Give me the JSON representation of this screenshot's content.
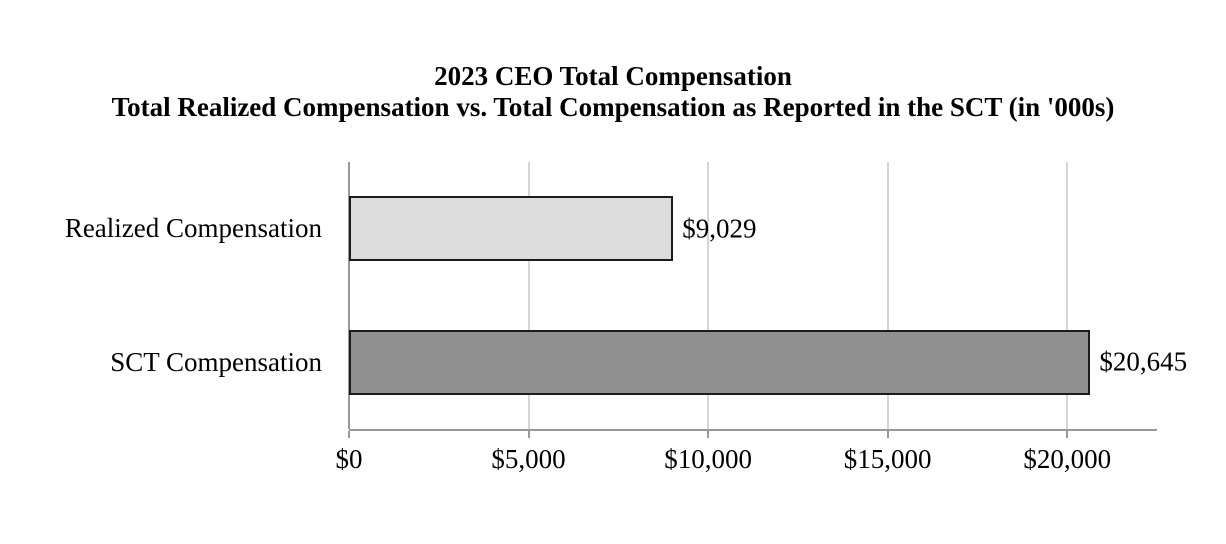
{
  "chart_data": {
    "type": "bar",
    "orientation": "horizontal",
    "title": "2023 CEO Total Compensation",
    "subtitle": "Total Realized Compensation vs. Total Compensation as Reported in the SCT (in '000s)",
    "categories": [
      "Realized Compensation",
      "SCT Compensation"
    ],
    "values": [
      9029,
      20645
    ],
    "value_labels": [
      "$9,029",
      "$20,645"
    ],
    "bar_colors": [
      "#dcdcdc",
      "#909090"
    ],
    "bar_border_color": "#1c1c1c",
    "xlim": [
      0,
      22500
    ],
    "x_ticks": [
      0,
      5000,
      10000,
      15000,
      20000
    ],
    "x_tick_labels": [
      "$0",
      "$5,000",
      "$10,000",
      "$15,000",
      "$20,000"
    ],
    "grid": true,
    "gridline_color": "#d6d6d6",
    "axis_color": "#999999",
    "legend": "none",
    "background_color": "#ffffff"
  }
}
